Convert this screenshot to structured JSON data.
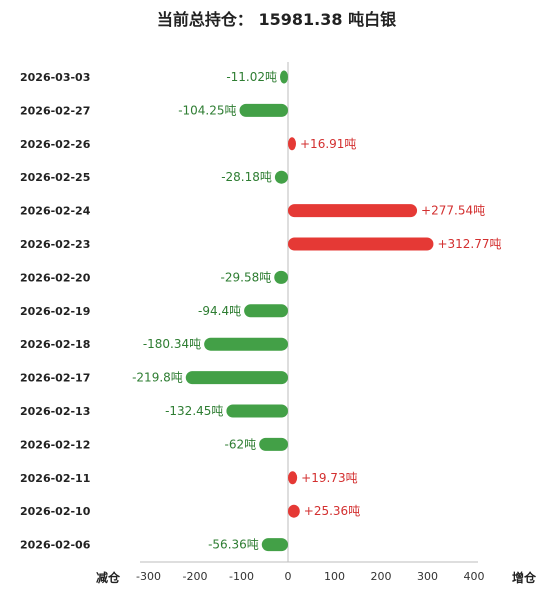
{
  "title": "当前总持仓： 15981.38 吨白银",
  "chart_data": {
    "type": "bar",
    "orientation": "horizontal",
    "title": "当前总持仓： 15981.38 吨白银",
    "categories": [
      "2026-03-03",
      "2026-02-27",
      "2026-02-26",
      "2026-02-25",
      "2026-02-24",
      "2026-02-23",
      "2026-02-20",
      "2026-02-19",
      "2026-02-18",
      "2026-02-17",
      "2026-02-13",
      "2026-02-12",
      "2026-02-11",
      "2026-02-10",
      "2026-02-06"
    ],
    "values": [
      -11.02,
      -104.25,
      16.91,
      -28.18,
      277.54,
      312.77,
      -29.58,
      -94.4,
      -180.34,
      -219.8,
      -132.45,
      -62,
      19.73,
      25.36,
      -56.36
    ],
    "value_labels": [
      "-11.02吨",
      "-104.25吨",
      "+16.91吨",
      "-28.18吨",
      "+277.54吨",
      "+312.77吨",
      "-29.58吨",
      "-94.4吨",
      "-180.34吨",
      "-219.8吨",
      "-132.45吨",
      "-62吨",
      "+19.73吨",
      "+25.36吨",
      "-56.36吨"
    ],
    "xlim": [
      -300,
      400
    ],
    "xticks": [
      "-300",
      "-200",
      "-100",
      "0",
      "100",
      "200",
      "300",
      "400"
    ],
    "xlabel_left": "减仓",
    "xlabel_right": "增仓",
    "colors": {
      "positive": "#e53935",
      "negative": "#43a047"
    },
    "grid": false
  }
}
